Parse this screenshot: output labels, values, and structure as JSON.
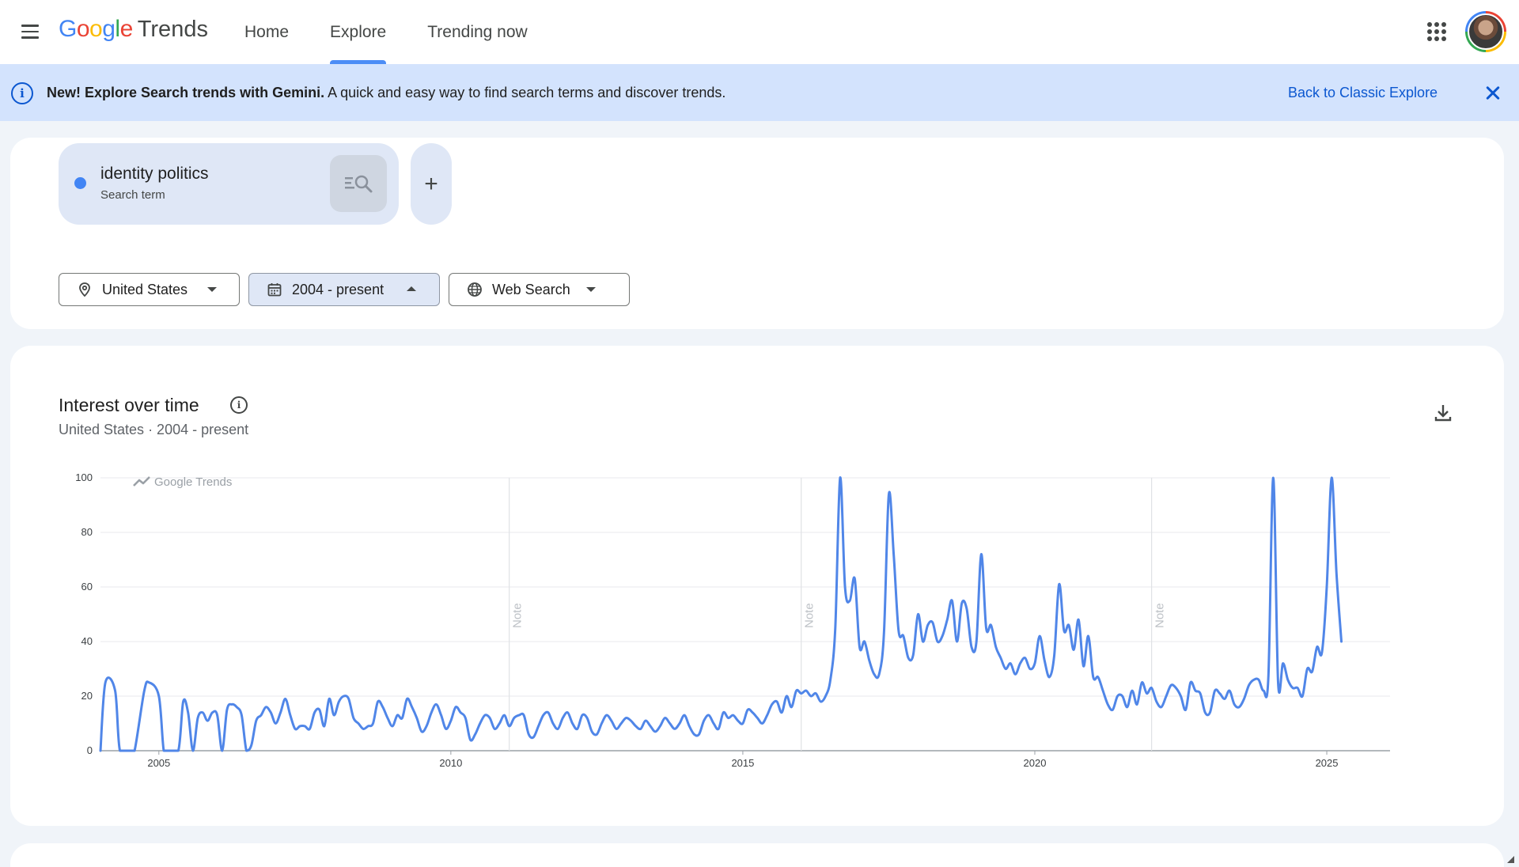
{
  "header": {
    "menu_icon": "hamburger-menu-icon",
    "logo": {
      "letters": [
        {
          "ch": "G",
          "color": "#4285f4"
        },
        {
          "ch": "o",
          "color": "#ea4335"
        },
        {
          "ch": "o",
          "color": "#fbbc04"
        },
        {
          "ch": "g",
          "color": "#4285f4"
        },
        {
          "ch": "l",
          "color": "#34a853"
        },
        {
          "ch": "e",
          "color": "#ea4335"
        }
      ],
      "product": "Trends"
    },
    "nav": [
      {
        "label": "Home",
        "active": false
      },
      {
        "label": "Explore",
        "active": true
      },
      {
        "label": "Trending now",
        "active": false
      }
    ],
    "apps_icon": "apps-grid-icon",
    "avatar_icon": "account-avatar"
  },
  "banner": {
    "bold": "New! Explore Search trends with Gemini.",
    "text": " A quick and easy way to find search terms and discover trends.",
    "link": "Back to Classic Explore",
    "info_icon": "info-icon",
    "close_icon": "close-icon",
    "info_glyph": "i"
  },
  "search": {
    "term": "identity politics",
    "type": "Search term",
    "term_color": "#4285f4",
    "add_glyph": "+",
    "filters": [
      {
        "label": "United States",
        "icon": "location-pin-icon",
        "caret": "down"
      },
      {
        "label": "2004 - present",
        "icon": "calendar-icon",
        "caret": "up",
        "selected": true
      },
      {
        "label": "Web Search",
        "icon": "globe-icon",
        "caret": "down"
      }
    ]
  },
  "interest": {
    "title": "Interest over time",
    "subtitle": "United States · 2004 - present",
    "info_glyph": "i",
    "download_icon": "download-icon"
  },
  "chart_data": {
    "type": "line",
    "watermark": "Google Trends",
    "y_ticks": [
      0,
      20,
      40,
      60,
      80,
      100
    ],
    "ylim": [
      0,
      100
    ],
    "x_range": [
      "2004-01",
      "2026-02"
    ],
    "x_ticks": [
      {
        "label": "2005",
        "date": "2005-01"
      },
      {
        "label": "2010",
        "date": "2010-01"
      },
      {
        "label": "2015",
        "date": "2015-01"
      },
      {
        "label": "2020",
        "date": "2020-01"
      },
      {
        "label": "2025",
        "date": "2025-01"
      }
    ],
    "notes": [
      {
        "label": "Note",
        "date": "2011-01"
      },
      {
        "label": "Note",
        "date": "2016-01"
      },
      {
        "label": "Note",
        "date": "2022-01"
      }
    ],
    "grid": true,
    "series": [
      {
        "color": "#5086e8",
        "points": [
          [
            "2004-01",
            0
          ],
          [
            "2004-02",
            25
          ],
          [
            "2004-04",
            22
          ],
          [
            "2004-05",
            0
          ],
          [
            "2004-07",
            0
          ],
          [
            "2004-08",
            0
          ],
          [
            "2004-10",
            22
          ],
          [
            "2004-11",
            25
          ],
          [
            "2005-01",
            20
          ],
          [
            "2005-02",
            0
          ],
          [
            "2005-03",
            0
          ],
          [
            "2005-05",
            0
          ],
          [
            "2005-06",
            18
          ],
          [
            "2005-07",
            14
          ],
          [
            "2005-08",
            0
          ],
          [
            "2005-09",
            12
          ],
          [
            "2005-10",
            14
          ],
          [
            "2005-11",
            11
          ],
          [
            "2005-12",
            14
          ],
          [
            "2006-01",
            13
          ],
          [
            "2006-02",
            0
          ],
          [
            "2006-03",
            15
          ],
          [
            "2006-04",
            17
          ],
          [
            "2006-05",
            16
          ],
          [
            "2006-06",
            13
          ],
          [
            "2006-07",
            0
          ],
          [
            "2006-08",
            2
          ],
          [
            "2006-09",
            11
          ],
          [
            "2006-10",
            13
          ],
          [
            "2006-11",
            16
          ],
          [
            "2006-12",
            14
          ],
          [
            "2007-01",
            10
          ],
          [
            "2007-02",
            14
          ],
          [
            "2007-03",
            19
          ],
          [
            "2007-04",
            13
          ],
          [
            "2007-05",
            8
          ],
          [
            "2007-06",
            9
          ],
          [
            "2007-07",
            9
          ],
          [
            "2007-08",
            8
          ],
          [
            "2007-09",
            14
          ],
          [
            "2007-10",
            15
          ],
          [
            "2007-11",
            9
          ],
          [
            "2007-12",
            19
          ],
          [
            "2008-01",
            13
          ],
          [
            "2008-02",
            18
          ],
          [
            "2008-03",
            20
          ],
          [
            "2008-04",
            19
          ],
          [
            "2008-05",
            12
          ],
          [
            "2008-06",
            10
          ],
          [
            "2008-07",
            8
          ],
          [
            "2008-08",
            9
          ],
          [
            "2008-09",
            10
          ],
          [
            "2008-10",
            18
          ],
          [
            "2008-11",
            16
          ],
          [
            "2008-12",
            12
          ],
          [
            "2009-01",
            9
          ],
          [
            "2009-02",
            13
          ],
          [
            "2009-03",
            12
          ],
          [
            "2009-04",
            19
          ],
          [
            "2009-05",
            16
          ],
          [
            "2009-06",
            12
          ],
          [
            "2009-07",
            7
          ],
          [
            "2009-08",
            9
          ],
          [
            "2009-09",
            14
          ],
          [
            "2009-10",
            17
          ],
          [
            "2009-11",
            13
          ],
          [
            "2009-12",
            8
          ],
          [
            "2010-01",
            11
          ],
          [
            "2010-02",
            16
          ],
          [
            "2010-03",
            14
          ],
          [
            "2010-04",
            12
          ],
          [
            "2010-05",
            4
          ],
          [
            "2010-06",
            6
          ],
          [
            "2010-07",
            10
          ],
          [
            "2010-08",
            13
          ],
          [
            "2010-09",
            12
          ],
          [
            "2010-10",
            8
          ],
          [
            "2010-11",
            10
          ],
          [
            "2010-12",
            13
          ],
          [
            "2011-01",
            9
          ],
          [
            "2011-02",
            12
          ],
          [
            "2011-03",
            13
          ],
          [
            "2011-04",
            13
          ],
          [
            "2011-05",
            6
          ],
          [
            "2011-06",
            5
          ],
          [
            "2011-07",
            9
          ],
          [
            "2011-08",
            13
          ],
          [
            "2011-09",
            14
          ],
          [
            "2011-10",
            10
          ],
          [
            "2011-11",
            8
          ],
          [
            "2011-12",
            12
          ],
          [
            "2012-01",
            14
          ],
          [
            "2012-02",
            10
          ],
          [
            "2012-03",
            8
          ],
          [
            "2012-04",
            13
          ],
          [
            "2012-05",
            12
          ],
          [
            "2012-06",
            7
          ],
          [
            "2012-07",
            6
          ],
          [
            "2012-08",
            10
          ],
          [
            "2012-09",
            13
          ],
          [
            "2012-10",
            11
          ],
          [
            "2012-11",
            8
          ],
          [
            "2012-12",
            10
          ],
          [
            "2013-01",
            12
          ],
          [
            "2013-02",
            11
          ],
          [
            "2013-03",
            9
          ],
          [
            "2013-04",
            8
          ],
          [
            "2013-05",
            11
          ],
          [
            "2013-06",
            9
          ],
          [
            "2013-07",
            7
          ],
          [
            "2013-08",
            9
          ],
          [
            "2013-09",
            12
          ],
          [
            "2013-10",
            10
          ],
          [
            "2013-11",
            8
          ],
          [
            "2013-12",
            10
          ],
          [
            "2014-01",
            13
          ],
          [
            "2014-02",
            9
          ],
          [
            "2014-03",
            6
          ],
          [
            "2014-04",
            6
          ],
          [
            "2014-05",
            11
          ],
          [
            "2014-06",
            13
          ],
          [
            "2014-07",
            10
          ],
          [
            "2014-08",
            8
          ],
          [
            "2014-09",
            14
          ],
          [
            "2014-10",
            12
          ],
          [
            "2014-11",
            13
          ],
          [
            "2014-12",
            11
          ],
          [
            "2015-01",
            10
          ],
          [
            "2015-02",
            15
          ],
          [
            "2015-03",
            14
          ],
          [
            "2015-04",
            12
          ],
          [
            "2015-05",
            10
          ],
          [
            "2015-06",
            13
          ],
          [
            "2015-07",
            17
          ],
          [
            "2015-08",
            18
          ],
          [
            "2015-09",
            14
          ],
          [
            "2015-10",
            20
          ],
          [
            "2015-11",
            16
          ],
          [
            "2015-12",
            22
          ],
          [
            "2016-01",
            21
          ],
          [
            "2016-02",
            22
          ],
          [
            "2016-03",
            20
          ],
          [
            "2016-04",
            21
          ],
          [
            "2016-05",
            18
          ],
          [
            "2016-06",
            20
          ],
          [
            "2016-07",
            26
          ],
          [
            "2016-08",
            45
          ],
          [
            "2016-09",
            100
          ],
          [
            "2016-10",
            60
          ],
          [
            "2016-11",
            55
          ],
          [
            "2016-12",
            63
          ],
          [
            "2017-01",
            38
          ],
          [
            "2017-02",
            40
          ],
          [
            "2017-03",
            33
          ],
          [
            "2017-04",
            28
          ],
          [
            "2017-05",
            28
          ],
          [
            "2017-06",
            43
          ],
          [
            "2017-07",
            94
          ],
          [
            "2017-08",
            72
          ],
          [
            "2017-09",
            44
          ],
          [
            "2017-10",
            42
          ],
          [
            "2017-11",
            34
          ],
          [
            "2017-12",
            35
          ],
          [
            "2018-01",
            50
          ],
          [
            "2018-02",
            40
          ],
          [
            "2018-03",
            46
          ],
          [
            "2018-04",
            47
          ],
          [
            "2018-05",
            40
          ],
          [
            "2018-06",
            42
          ],
          [
            "2018-07",
            48
          ],
          [
            "2018-08",
            55
          ],
          [
            "2018-09",
            40
          ],
          [
            "2018-10",
            54
          ],
          [
            "2018-11",
            52
          ],
          [
            "2018-12",
            38
          ],
          [
            "2019-01",
            40
          ],
          [
            "2019-02",
            72
          ],
          [
            "2019-03",
            45
          ],
          [
            "2019-04",
            46
          ],
          [
            "2019-05",
            38
          ],
          [
            "2019-06",
            34
          ],
          [
            "2019-07",
            30
          ],
          [
            "2019-08",
            32
          ],
          [
            "2019-09",
            28
          ],
          [
            "2019-10",
            32
          ],
          [
            "2019-11",
            34
          ],
          [
            "2019-12",
            30
          ],
          [
            "2020-01",
            32
          ],
          [
            "2020-02",
            42
          ],
          [
            "2020-03",
            33
          ],
          [
            "2020-04",
            27
          ],
          [
            "2020-05",
            35
          ],
          [
            "2020-06",
            61
          ],
          [
            "2020-07",
            44
          ],
          [
            "2020-08",
            46
          ],
          [
            "2020-09",
            37
          ],
          [
            "2020-10",
            48
          ],
          [
            "2020-11",
            31
          ],
          [
            "2020-12",
            42
          ],
          [
            "2021-01",
            27
          ],
          [
            "2021-02",
            27
          ],
          [
            "2021-03",
            22
          ],
          [
            "2021-04",
            17
          ],
          [
            "2021-05",
            15
          ],
          [
            "2021-06",
            20
          ],
          [
            "2021-07",
            20
          ],
          [
            "2021-08",
            16
          ],
          [
            "2021-09",
            22
          ],
          [
            "2021-10",
            17
          ],
          [
            "2021-11",
            25
          ],
          [
            "2021-12",
            21
          ],
          [
            "2022-01",
            23
          ],
          [
            "2022-02",
            18
          ],
          [
            "2022-03",
            16
          ],
          [
            "2022-04",
            20
          ],
          [
            "2022-05",
            24
          ],
          [
            "2022-06",
            23
          ],
          [
            "2022-07",
            20
          ],
          [
            "2022-08",
            15
          ],
          [
            "2022-09",
            25
          ],
          [
            "2022-10",
            22
          ],
          [
            "2022-11",
            21
          ],
          [
            "2022-12",
            14
          ],
          [
            "2023-01",
            14
          ],
          [
            "2023-02",
            22
          ],
          [
            "2023-03",
            21
          ],
          [
            "2023-04",
            19
          ],
          [
            "2023-05",
            22
          ],
          [
            "2023-06",
            17
          ],
          [
            "2023-07",
            16
          ],
          [
            "2023-08",
            19
          ],
          [
            "2023-09",
            24
          ],
          [
            "2023-10",
            26
          ],
          [
            "2023-11",
            26
          ],
          [
            "2023-12",
            22
          ],
          [
            "2024-01",
            27
          ],
          [
            "2024-02",
            100
          ],
          [
            "2024-03",
            25
          ],
          [
            "2024-04",
            32
          ],
          [
            "2024-05",
            26
          ],
          [
            "2024-06",
            23
          ],
          [
            "2024-07",
            23
          ],
          [
            "2024-08",
            20
          ],
          [
            "2024-09",
            30
          ],
          [
            "2024-10",
            29
          ],
          [
            "2024-11",
            38
          ],
          [
            "2024-12",
            36
          ],
          [
            "2025-01",
            60
          ],
          [
            "2025-02",
            100
          ],
          [
            "2025-03",
            65
          ],
          [
            "2025-04",
            40
          ]
        ]
      }
    ]
  }
}
